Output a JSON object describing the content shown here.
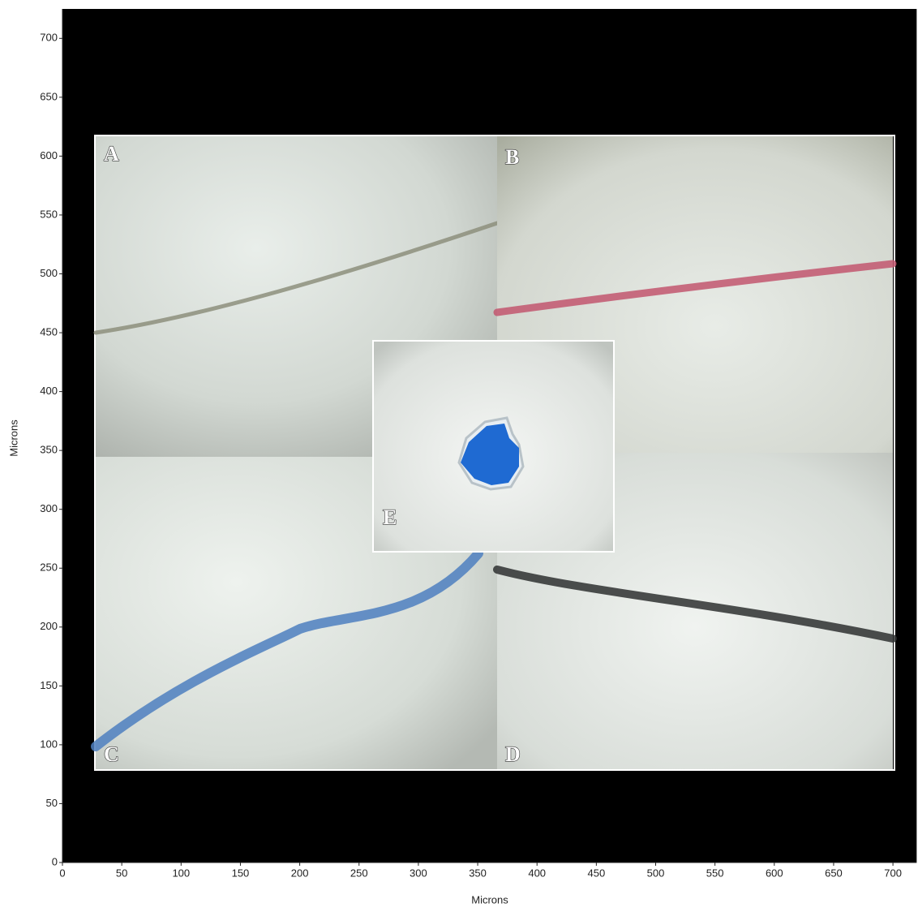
{
  "chart_data": {
    "type": "image",
    "x_label": "Microns",
    "y_label": "Microns",
    "xlim": [
      0,
      720
    ],
    "ylim": [
      0,
      725
    ],
    "xticks": [
      0,
      50,
      100,
      150,
      200,
      250,
      300,
      350,
      400,
      450,
      500,
      550,
      600,
      650,
      700
    ],
    "yticks": [
      0,
      50,
      100,
      150,
      200,
      250,
      300,
      350,
      400,
      450,
      500,
      550,
      600,
      650,
      700
    ],
    "panel_labels": [
      "A",
      "B",
      "C",
      "D",
      "E"
    ]
  }
}
